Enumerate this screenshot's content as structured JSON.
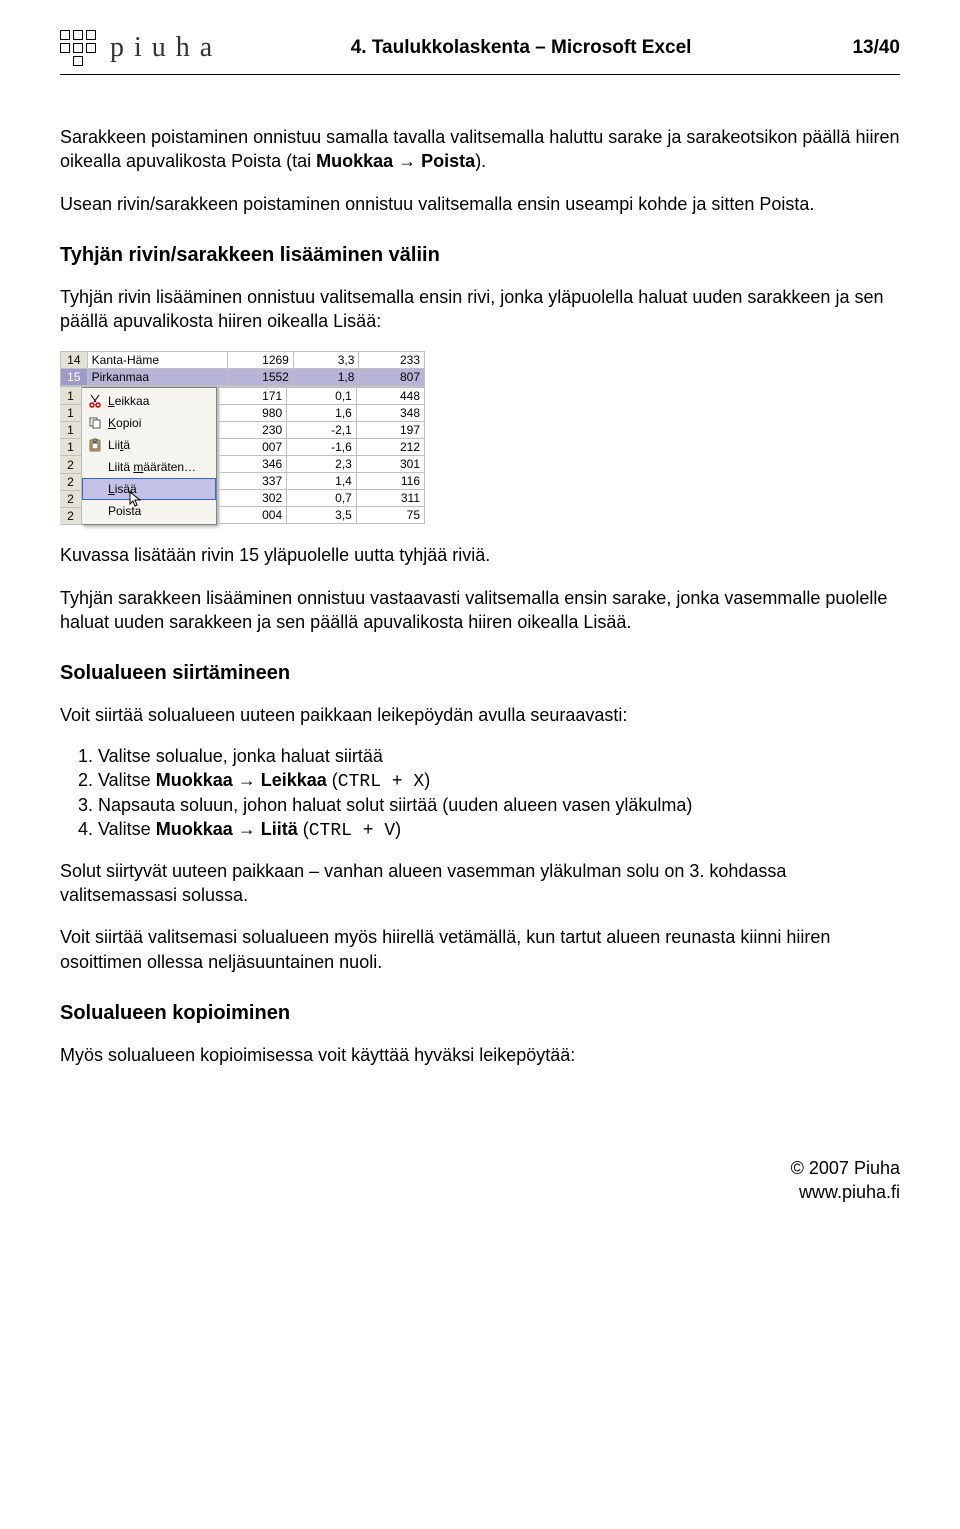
{
  "header": {
    "logo_text": "piuha",
    "title": "4. Taulukkolaskenta – Microsoft Excel",
    "page": "13/40"
  },
  "para1_a": "Sarakkeen poistaminen onnistuu samalla tavalla valitsemalla haluttu sarake ja sarakeotsikon päällä hiiren oikealla apuvalikosta Poista (tai ",
  "para1_b": "Muokkaa → Poista",
  "para1_c": ").",
  "para2": "Usean rivin/sarakkeen poistaminen onnistuu valitsemalla ensin useampi kohde ja sitten Poista.",
  "h1": "Tyhjän rivin/sarakkeen lisääminen väliin",
  "para3": "Tyhjän rivin lisääminen onnistuu valitsemalla ensin rivi, jonka yläpuolella haluat uuden sarakkeen ja sen päällä apuvalikosta hiiren oikealla Lisää:",
  "excel": {
    "top_rows": [
      {
        "n": "14",
        "label": "Kanta-Häme",
        "a": "1269",
        "b": "3,3",
        "c": "233"
      },
      {
        "n": "15",
        "label": "Pirkanmaa",
        "a": "1552",
        "b": "1,8",
        "c": "807",
        "sel": true
      }
    ],
    "menu": [
      {
        "label": "Leikkaa",
        "u": 0,
        "icon": "cut"
      },
      {
        "label": "Kopioi",
        "u": 0,
        "icon": "copy"
      },
      {
        "label": "Liitä",
        "u": 3,
        "icon": "paste"
      },
      {
        "label": "Liitä määräten…",
        "u": 6,
        "icon": ""
      },
      {
        "label": "Lisää",
        "u": 0,
        "icon": "",
        "sel": true
      },
      {
        "label": "Poista",
        "u": -1,
        "icon": ""
      }
    ],
    "side_rows": [
      {
        "a": "171",
        "b": "0,1",
        "c": "448"
      },
      {
        "a": "980",
        "b": "1,6",
        "c": "348"
      },
      {
        "a": "230",
        "b": "-2,1",
        "c": "197"
      },
      {
        "a": "007",
        "b": "-1,6",
        "c": "212"
      },
      {
        "a": "346",
        "b": "2,3",
        "c": "301"
      },
      {
        "a": "337",
        "b": "1,4",
        "c": "116"
      },
      {
        "a": "302",
        "b": "0,7",
        "c": "311"
      },
      {
        "a": "004",
        "b": "3,5",
        "c": "75"
      }
    ],
    "rowhead_vals": [
      "1",
      "1",
      "1",
      "1",
      "2",
      "2",
      "2",
      "2"
    ]
  },
  "para4": "Kuvassa lisätään rivin 15 yläpuolelle uutta tyhjää riviä.",
  "para5": "Tyhjän sarakkeen lisääminen onnistuu vastaavasti valitsemalla ensin sarake, jonka vasemmalle puolelle haluat uuden sarakkeen ja sen päällä apuvalikosta hiiren oikealla Lisää.",
  "h2": "Solualueen siirtämineen",
  "para6": "Voit siirtää solualueen uuteen paikkaan leikepöydän avulla seuraavasti:",
  "steps": [
    {
      "t": "Valitse solualue, jonka haluat siirtää"
    },
    {
      "t": "Valitse ",
      "b": "Muokkaa → Leikkaa",
      "t2": " (",
      "m": "CTRL + X",
      "t3": ")"
    },
    {
      "t": "Napsauta soluun, johon haluat solut siirtää (uuden alueen vasen yläkulma)"
    },
    {
      "t": "Valitse ",
      "b": "Muokkaa → Liitä",
      "t2": " (",
      "m": "CTRL + V",
      "t3": ")"
    }
  ],
  "para7": "Solut siirtyvät uuteen paikkaan – vanhan alueen vasemman yläkulman solu on 3. kohdassa valitsemassasi solussa.",
  "para8": "Voit siirtää valitsemasi solualueen myös hiirellä vetämällä, kun tartut alueen reunasta kiinni hiiren osoittimen ollessa neljäsuuntainen nuoli.",
  "h3": "Solualueen kopioiminen",
  "para9": "Myös solualueen kopioimisessa voit käyttää hyväksi leikepöytää:",
  "footer": {
    "l1": "© 2007 Piuha",
    "l2": "www.piuha.fi"
  }
}
